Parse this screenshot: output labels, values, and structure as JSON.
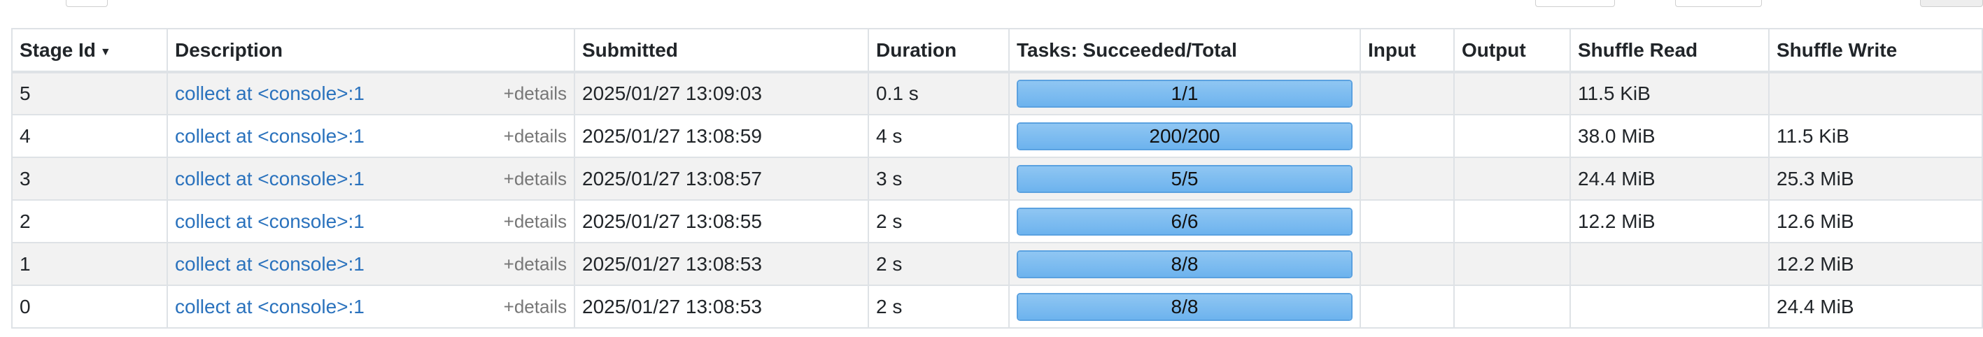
{
  "table": {
    "headers": {
      "stage_id": "Stage Id",
      "sort_icon": "▼",
      "description": "Description",
      "submitted": "Submitted",
      "duration": "Duration",
      "tasks": "Tasks: Succeeded/Total",
      "input": "Input",
      "output": "Output",
      "shuffle_read": "Shuffle Read",
      "shuffle_write": "Shuffle Write"
    },
    "details_label": "+details",
    "rows": [
      {
        "stage_id": "5",
        "description": "collect at <console>:1",
        "submitted": "2025/01/27 13:09:03",
        "duration": "0.1 s",
        "tasks": "1/1",
        "tasks_progress": 1.0,
        "input": "",
        "output": "",
        "shuffle_read": "11.5 KiB",
        "shuffle_write": ""
      },
      {
        "stage_id": "4",
        "description": "collect at <console>:1",
        "submitted": "2025/01/27 13:08:59",
        "duration": "4 s",
        "tasks": "200/200",
        "tasks_progress": 1.0,
        "input": "",
        "output": "",
        "shuffle_read": "38.0 MiB",
        "shuffle_write": "11.5 KiB"
      },
      {
        "stage_id": "3",
        "description": "collect at <console>:1",
        "submitted": "2025/01/27 13:08:57",
        "duration": "3 s",
        "tasks": "5/5",
        "tasks_progress": 1.0,
        "input": "",
        "output": "",
        "shuffle_read": "24.4 MiB",
        "shuffle_write": "25.3 MiB"
      },
      {
        "stage_id": "2",
        "description": "collect at <console>:1",
        "submitted": "2025/01/27 13:08:55",
        "duration": "2 s",
        "tasks": "6/6",
        "tasks_progress": 1.0,
        "input": "",
        "output": "",
        "shuffle_read": "12.2 MiB",
        "shuffle_write": "12.6 MiB"
      },
      {
        "stage_id": "1",
        "description": "collect at <console>:1",
        "submitted": "2025/01/27 13:08:53",
        "duration": "2 s",
        "tasks": "8/8",
        "tasks_progress": 1.0,
        "input": "",
        "output": "",
        "shuffle_read": "",
        "shuffle_write": "12.2 MiB"
      },
      {
        "stage_id": "0",
        "description": "collect at <console>:1",
        "submitted": "2025/01/27 13:08:53",
        "duration": "2 s",
        "tasks": "8/8",
        "tasks_progress": 1.0,
        "input": "",
        "output": "",
        "shuffle_read": "",
        "shuffle_write": "24.4 MiB"
      }
    ]
  },
  "colors": {
    "link": "#2a72bd",
    "progress_fill": "#6db3ee",
    "row_stripe": "#f2f2f2"
  }
}
